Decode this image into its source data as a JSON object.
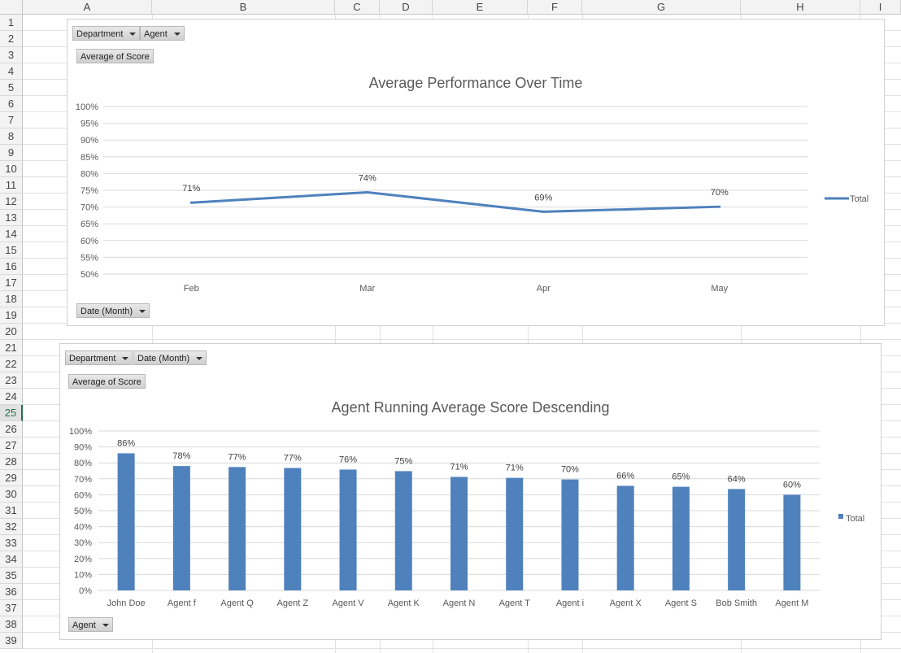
{
  "columns": [
    "A",
    "B",
    "C",
    "D",
    "E",
    "F",
    "G",
    "H",
    "I"
  ],
  "rows": [
    "1",
    "2",
    "3",
    "4",
    "5",
    "6",
    "7",
    "8",
    "9",
    "10",
    "11",
    "12",
    "13",
    "14",
    "15",
    "16",
    "17",
    "18",
    "19",
    "20",
    "21",
    "22",
    "23",
    "24",
    "25",
    "26",
    "27",
    "28",
    "29",
    "30",
    "31",
    "32",
    "33",
    "34",
    "35",
    "36",
    "37",
    "38",
    "39"
  ],
  "selected_row": "25",
  "colors": {
    "series": "#4f81bd",
    "grid": "#d9d9d9",
    "axis_text": "#595959",
    "selected": "#217346"
  },
  "chart1": {
    "buttons": {
      "department": "Department",
      "agent": "Agent",
      "value_field": "Average of Score",
      "axis_field": "Date (Month)"
    }
  },
  "chart2": {
    "buttons": {
      "department": "Department",
      "date": "Date (Month)",
      "value_field": "Average of Score",
      "axis_field": "Agent"
    }
  },
  "chart_data": [
    {
      "type": "line",
      "title": "Average Performance Over Time",
      "categories": [
        "Feb",
        "Mar",
        "Apr",
        "May"
      ],
      "series": [
        {
          "name": "Total",
          "values": [
            0.713,
            0.744,
            0.686,
            0.701
          ]
        }
      ],
      "data_labels": [
        "71%",
        "74%",
        "69%",
        "70%"
      ],
      "ylim": [
        0.5,
        1.0
      ],
      "yticks": [
        "100%",
        "95%",
        "90%",
        "85%",
        "80%",
        "75%",
        "70%",
        "65%",
        "60%",
        "55%",
        "50%"
      ],
      "grid": true,
      "legend": "right"
    },
    {
      "type": "bar",
      "title": "Agent Running Average Score Descending",
      "categories": [
        "John Doe",
        "Agent f",
        "Agent Q",
        "Agent Z",
        "Agent V",
        "Agent K",
        "Agent N",
        "Agent T",
        "Agent i",
        "Agent X",
        "Agent S",
        "Bob Smith",
        "Agent M"
      ],
      "series": [
        {
          "name": "Total",
          "values": [
            0.86,
            0.78,
            0.774,
            0.768,
            0.758,
            0.748,
            0.712,
            0.706,
            0.696,
            0.656,
            0.65,
            0.636,
            0.6
          ]
        }
      ],
      "data_labels": [
        "86%",
        "78%",
        "77%",
        "77%",
        "76%",
        "75%",
        "71%",
        "71%",
        "70%",
        "66%",
        "65%",
        "64%",
        "60%"
      ],
      "ylim": [
        0,
        1.0
      ],
      "yticks": [
        "100%",
        "90%",
        "80%",
        "70%",
        "60%",
        "50%",
        "40%",
        "30%",
        "20%",
        "10%",
        "0%"
      ],
      "grid": true,
      "legend": "right"
    }
  ]
}
